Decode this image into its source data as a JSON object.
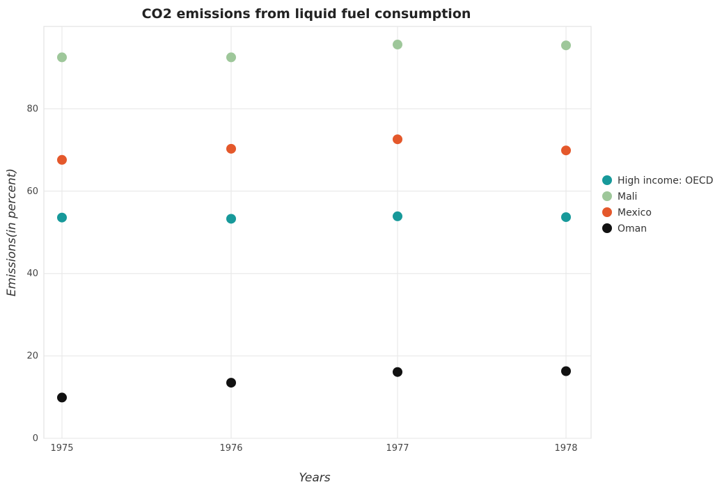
{
  "chart_data": {
    "type": "scatter",
    "title": "CO2 emissions from liquid fuel consumption",
    "xlabel": "Years",
    "ylabel": "Emissions(in percent)",
    "categories": [
      "1975",
      "1976",
      "1977",
      "1978"
    ],
    "ylim": [
      0,
      100
    ],
    "yticks": [
      0,
      20,
      40,
      60,
      80
    ],
    "grid": true,
    "legend_position": "right",
    "series": [
      {
        "name": "High income: OECD",
        "color": "#17999a",
        "values": [
          53.6,
          53.3,
          53.9,
          53.7
        ]
      },
      {
        "name": "Mali",
        "color": "#9ec79a",
        "values": [
          92.5,
          92.5,
          95.6,
          95.4
        ]
      },
      {
        "name": "Mexico",
        "color": "#e4582b",
        "values": [
          67.6,
          70.3,
          72.6,
          69.9
        ]
      },
      {
        "name": "Oman",
        "color": "#111111",
        "values": [
          9.9,
          13.5,
          16.1,
          16.3
        ]
      }
    ]
  }
}
